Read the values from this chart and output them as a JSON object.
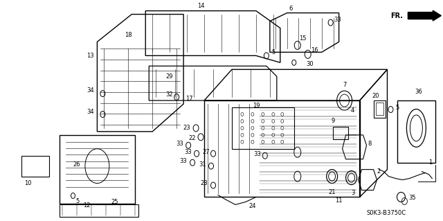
{
  "part_code": "S0K3-B3750C",
  "bg_color": "#ffffff",
  "line_color": "#000000",
  "fig_width": 6.4,
  "fig_height": 3.19,
  "dpi": 100
}
